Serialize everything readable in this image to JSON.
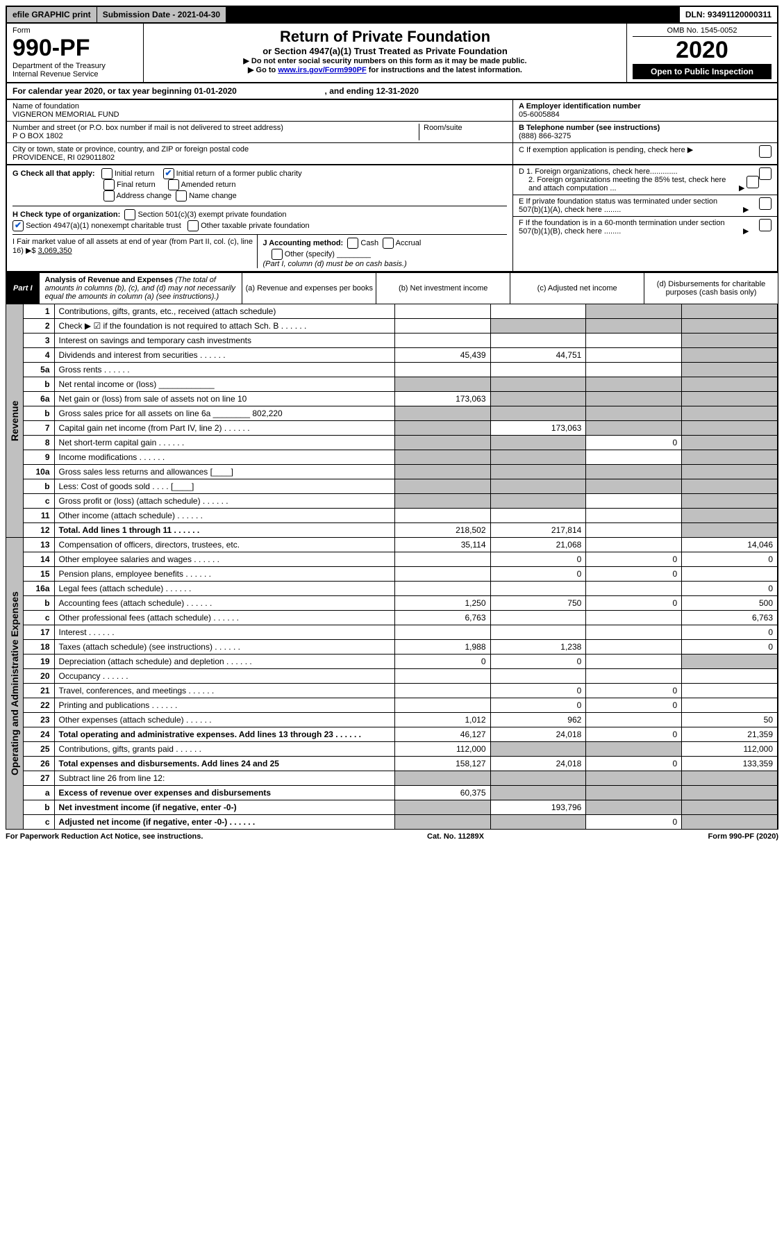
{
  "top": {
    "efile": "efile GRAPHIC print",
    "subdate_label": "Submission Date - ",
    "subdate": "2021-04-30",
    "dln_label": "DLN: ",
    "dln": "93491120000311"
  },
  "header": {
    "form_label": "Form",
    "form_number": "990-PF",
    "dept": "Department of the Treasury",
    "irs": "Internal Revenue Service",
    "title": "Return of Private Foundation",
    "subtitle": "or Section 4947(a)(1) Trust Treated as Private Foundation",
    "instr1": "▶ Do not enter social security numbers on this form as it may be made public.",
    "instr2_pre": "▶ Go to ",
    "instr2_link": "www.irs.gov/Form990PF",
    "instr2_post": " for instructions and the latest information.",
    "omb": "OMB No. 1545-0052",
    "year": "2020",
    "open": "Open to Public Inspection"
  },
  "cal": {
    "text_pre": "For calendar year 2020, or tax year beginning ",
    "begin": "01-01-2020",
    "mid": " , and ending ",
    "end": "12-31-2020"
  },
  "entity": {
    "name_label": "Name of foundation",
    "name": "VIGNERON MEMORIAL FUND",
    "addr_label": "Number and street (or P.O. box number if mail is not delivered to street address)",
    "addr": "P O BOX 1802",
    "room_label": "Room/suite",
    "city_label": "City or town, state or province, country, and ZIP or foreign postal code",
    "city": "PROVIDENCE, RI  029011802",
    "ein_label": "A Employer identification number",
    "ein": "05-6005884",
    "tel_label": "B Telephone number (see instructions)",
    "tel": "(888) 866-3275",
    "c": "C If exemption application is pending, check here ▶",
    "d1": "D 1. Foreign organizations, check here.............",
    "d2": "2. Foreign organizations meeting the 85% test, check here and attach computation ...",
    "e": "E If private foundation status was terminated under section 507(b)(1)(A), check here ........",
    "f": "F If the foundation is in a 60-month termination under section 507(b)(1)(B), check here ........"
  },
  "g": {
    "label": "G Check all that apply:",
    "initial": "Initial return",
    "initial_former": "Initial return of a former public charity",
    "final": "Final return",
    "amended": "Amended return",
    "address": "Address change",
    "name": "Name change"
  },
  "h": {
    "label": "H Check type of organization:",
    "s501": "Section 501(c)(3) exempt private foundation",
    "s4947": "Section 4947(a)(1) nonexempt charitable trust",
    "other": "Other taxable private foundation"
  },
  "i": {
    "label": "I Fair market value of all assets at end of year (from Part II, col. (c), line 16) ▶$ ",
    "value": "3,069,350"
  },
  "j": {
    "label": "J Accounting method:",
    "cash": "Cash",
    "accrual": "Accrual",
    "other": "Other (specify)",
    "note": "(Part I, column (d) must be on cash basis.)"
  },
  "part1": {
    "label": "Part I",
    "title": "Analysis of Revenue and Expenses",
    "desc": " (The total of amounts in columns (b), (c), and (d) may not necessarily equal the amounts in column (a) (see instructions).)",
    "cola": "(a) Revenue and expenses per books",
    "colb": "(b) Net investment income",
    "colc": "(c) Adjusted net income",
    "cold": "(d) Disbursements for charitable purposes (cash basis only)"
  },
  "side": {
    "revenue": "Revenue",
    "expenses": "Operating and Administrative Expenses"
  },
  "rows": [
    {
      "n": "1",
      "d": "Contributions, gifts, grants, etc., received (attach schedule)",
      "a": "",
      "b": "",
      "c": "s",
      "d_s": "s"
    },
    {
      "n": "2",
      "d": "Check ▶ ☑ if the foundation is not required to attach Sch. B",
      "a": "",
      "b": "s",
      "c": "s",
      "d_s": "s",
      "dots": true
    },
    {
      "n": "3",
      "d": "Interest on savings and temporary cash investments",
      "a": "",
      "b": "",
      "c": "",
      "d_s": "s"
    },
    {
      "n": "4",
      "d": "Dividends and interest from securities",
      "a": "45,439",
      "b": "44,751",
      "c": "",
      "d_s": "s",
      "dots": true
    },
    {
      "n": "5a",
      "d": "Gross rents",
      "a": "",
      "b": "",
      "c": "",
      "d_s": "s",
      "dots": true
    },
    {
      "n": "b",
      "d": "Net rental income or (loss) ____________",
      "a": "s",
      "b": "s",
      "c": "s",
      "d_s": "s"
    },
    {
      "n": "6a",
      "d": "Net gain or (loss) from sale of assets not on line 10",
      "a": "173,063",
      "b": "s",
      "c": "s",
      "d_s": "s"
    },
    {
      "n": "b",
      "d": "Gross sales price for all assets on line 6a ________ 802,220",
      "a": "s",
      "b": "s",
      "c": "s",
      "d_s": "s"
    },
    {
      "n": "7",
      "d": "Capital gain net income (from Part IV, line 2)",
      "a": "s",
      "b": "173,063",
      "c": "s",
      "d_s": "s",
      "dots": true
    },
    {
      "n": "8",
      "d": "Net short-term capital gain",
      "a": "s",
      "b": "s",
      "c": "0",
      "d_s": "s",
      "dots": true
    },
    {
      "n": "9",
      "d": "Income modifications",
      "a": "s",
      "b": "s",
      "c": "",
      "d_s": "s",
      "dots": true
    },
    {
      "n": "10a",
      "d": "Gross sales less returns and allowances  [____]",
      "a": "s",
      "b": "s",
      "c": "s",
      "d_s": "s"
    },
    {
      "n": "b",
      "d": "Less: Cost of goods sold       .  .  .  .  [____]",
      "a": "s",
      "b": "s",
      "c": "s",
      "d_s": "s"
    },
    {
      "n": "c",
      "d": "Gross profit or (loss) (attach schedule)",
      "a": "s",
      "b": "s",
      "c": "",
      "d_s": "s",
      "dots": true
    },
    {
      "n": "11",
      "d": "Other income (attach schedule)",
      "a": "",
      "b": "",
      "c": "",
      "d_s": "s",
      "dots": true
    },
    {
      "n": "12",
      "d": "Total. Add lines 1 through 11",
      "a": "218,502",
      "b": "217,814",
      "c": "",
      "d_s": "s",
      "bold": true,
      "dots": true
    }
  ],
  "rows2": [
    {
      "n": "13",
      "d": "Compensation of officers, directors, trustees, etc.",
      "a": "35,114",
      "b": "21,068",
      "c": "",
      "d_s": "14,046"
    },
    {
      "n": "14",
      "d": "Other employee salaries and wages",
      "a": "",
      "b": "0",
      "c": "0",
      "d_s": "0",
      "dots": true
    },
    {
      "n": "15",
      "d": "Pension plans, employee benefits",
      "a": "",
      "b": "0",
      "c": "0",
      "d_s": "",
      "dots": true
    },
    {
      "n": "16a",
      "d": "Legal fees (attach schedule)",
      "a": "",
      "b": "",
      "c": "",
      "d_s": "0",
      "dots": true
    },
    {
      "n": "b",
      "d": "Accounting fees (attach schedule)",
      "a": "1,250",
      "b": "750",
      "c": "0",
      "d_s": "500",
      "dots": true
    },
    {
      "n": "c",
      "d": "Other professional fees (attach schedule)",
      "a": "6,763",
      "b": "",
      "c": "",
      "d_s": "6,763",
      "dots": true
    },
    {
      "n": "17",
      "d": "Interest",
      "a": "",
      "b": "",
      "c": "",
      "d_s": "0",
      "dots": true
    },
    {
      "n": "18",
      "d": "Taxes (attach schedule) (see instructions)",
      "a": "1,988",
      "b": "1,238",
      "c": "",
      "d_s": "0",
      "dots": true
    },
    {
      "n": "19",
      "d": "Depreciation (attach schedule) and depletion",
      "a": "0",
      "b": "0",
      "c": "",
      "d_s": "s",
      "dots": true
    },
    {
      "n": "20",
      "d": "Occupancy",
      "a": "",
      "b": "",
      "c": "",
      "d_s": "",
      "dots": true
    },
    {
      "n": "21",
      "d": "Travel, conferences, and meetings",
      "a": "",
      "b": "0",
      "c": "0",
      "d_s": "",
      "dots": true
    },
    {
      "n": "22",
      "d": "Printing and publications",
      "a": "",
      "b": "0",
      "c": "0",
      "d_s": "",
      "dots": true
    },
    {
      "n": "23",
      "d": "Other expenses (attach schedule)",
      "a": "1,012",
      "b": "962",
      "c": "",
      "d_s": "50",
      "dots": true
    },
    {
      "n": "24",
      "d": "Total operating and administrative expenses. Add lines 13 through 23",
      "a": "46,127",
      "b": "24,018",
      "c": "0",
      "d_s": "21,359",
      "bold": true,
      "dots": true
    },
    {
      "n": "25",
      "d": "Contributions, gifts, grants paid",
      "a": "112,000",
      "b": "s",
      "c": "s",
      "d_s": "112,000",
      "dots": true
    },
    {
      "n": "26",
      "d": "Total expenses and disbursements. Add lines 24 and 25",
      "a": "158,127",
      "b": "24,018",
      "c": "0",
      "d_s": "133,359",
      "bold": true
    },
    {
      "n": "27",
      "d": "Subtract line 26 from line 12:",
      "a": "s",
      "b": "s",
      "c": "s",
      "d_s": "s"
    },
    {
      "n": "a",
      "d": "Excess of revenue over expenses and disbursements",
      "a": "60,375",
      "b": "s",
      "c": "s",
      "d_s": "s",
      "bold": true
    },
    {
      "n": "b",
      "d": "Net investment income (if negative, enter -0-)",
      "a": "s",
      "b": "193,796",
      "c": "s",
      "d_s": "s",
      "bold": true
    },
    {
      "n": "c",
      "d": "Adjusted net income (if negative, enter -0-)",
      "a": "s",
      "b": "s",
      "c": "0",
      "d_s": "s",
      "bold": true,
      "dots": true
    }
  ],
  "footer": {
    "left": "For Paperwork Reduction Act Notice, see instructions.",
    "center": "Cat. No. 11289X",
    "right": "Form 990-PF (2020)"
  }
}
